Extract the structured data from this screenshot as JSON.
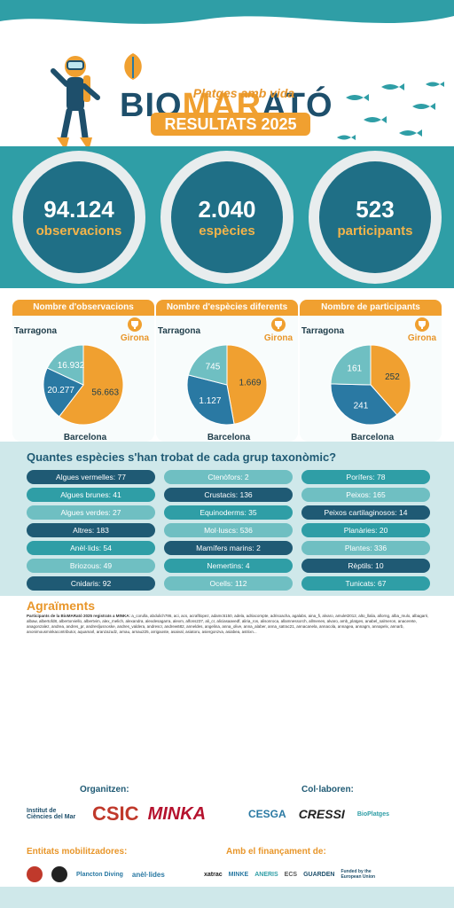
{
  "header": {
    "brand_left": "BIO",
    "brand_mid": "MAR",
    "brand_right": "ATÓ",
    "subtitle": "Platges amb vida",
    "results": "RESULTATS 2025"
  },
  "stats": [
    {
      "number": "94.124",
      "label": "observacions"
    },
    {
      "number": "2.040",
      "label": "espècies"
    },
    {
      "number": "523",
      "label": "participants"
    }
  ],
  "pies": [
    {
      "title": "Nombre d'observacions",
      "slices": [
        {
          "region": "Girona",
          "value": 56663
        },
        {
          "region": "Barcelona",
          "value": 20277
        },
        {
          "region": "Tarragona",
          "value": 16932
        }
      ],
      "labels": [
        "56.663",
        "20.277",
        "16.932"
      ]
    },
    {
      "title": "Nombre d'espècies diferents",
      "slices": [
        {
          "region": "Girona",
          "value": 1669
        },
        {
          "region": "Barcelona",
          "value": 1127
        },
        {
          "region": "Tarragona",
          "value": 745
        }
      ],
      "labels": [
        "1.669",
        "1.127",
        "745"
      ]
    },
    {
      "title": "Nombre de participants",
      "slices": [
        {
          "region": "Girona",
          "value": 252
        },
        {
          "region": "Barcelona",
          "value": 241
        },
        {
          "region": "Tarragona",
          "value": 161
        }
      ],
      "labels": [
        "252",
        "241",
        "161"
      ]
    }
  ],
  "regions": {
    "girona": "Girona",
    "barcelona": "Barcelona",
    "tarragona": "Tarragona"
  },
  "colors": {
    "girona": "#f0a030",
    "barcelona": "#2a79a3",
    "tarragona": "#6fbfc2",
    "dark": "#1f6f86"
  },
  "taxonomy": {
    "title": "Quantes espècies s'han trobat de cada grup taxonòmic?",
    "col1": [
      "Algues vermelles: 77",
      "Algues brunes: 41",
      "Algues verdes: 27",
      "Altres: 183",
      "Anèl·lids: 54",
      "Briozous: 49",
      "Cnidaris: 92"
    ],
    "col2": [
      "Ctenòfors: 2",
      "Crustacis: 136",
      "Equinoderms: 35",
      "Mol·luscs: 536",
      "Mamífers marins: 2",
      "Nemertins: 4",
      "Ocells: 112"
    ],
    "col3": [
      "Porífers: 78",
      "Peixos: 165",
      "Peixos cartilaginosos: 14",
      "Planàries: 20",
      "Plantes: 336",
      "Rèptils: 10",
      "Tunicats: 67"
    ]
  },
  "agraiments": {
    "title": "Agraïments",
    "lead": "Participants de la BioMARató 2025 registrats a MINKA:",
    "body": "a_corulla, abdulich786, aci, acs, acraftlopez, adamc5150, adela, adriacompte, adrisoacha, agalabs, aina_fi, alvaro, amulet2012, alto_llalia, allorng, alba_mulo, albagarri, albaw, albertofd8, albertorviello, albertvim, alex_melich, alexandra, alexdesagarra, alexm, alfons237, ali_cr, aliciasaavedf, aliria_ros, alisonroca, allamnessorch, allmenes, alvaro, amb_platges, anabel_salmeron, anacerete, anagonzalez, andrea, andres_pr, andresljusnoske, andres_valdera, andrescr, andrew682, anneldes, angelina, anna_olive, anna_alaber, anna_satrac21, annacanela, annacola, annagea, annagm, annapelx, annarb, anonimousminkacontributor, aquamarl, aranzazudz, arnau, arnau225, arrigaoste, asaival, asiatoru, asiergonzva, asiabea, astrixn..."
  },
  "organitzen": {
    "label": "Organitzen:",
    "logos": [
      "Institut de Ciències del Mar",
      "CSIC",
      "MINKA"
    ]
  },
  "collaboren": {
    "label": "Col·laboren:",
    "logos": [
      "CESGA",
      "CRESSI",
      "BioPlatges"
    ]
  },
  "mobilitzadores": {
    "label": "Entitats mobilitzadores:",
    "logos": [
      "Plancton Diving",
      "anèl·lides"
    ]
  },
  "financament": {
    "label": "Amb el finançament de:",
    "logos": [
      "xatrac",
      "MINKE",
      "ANERIS",
      "ECS",
      "GUARDEN",
      "Funded by the European Union"
    ]
  },
  "icons": {
    "trophy": "trophy-icon",
    "diver": "diver-illustration",
    "fish": "fish-school-illustration"
  }
}
